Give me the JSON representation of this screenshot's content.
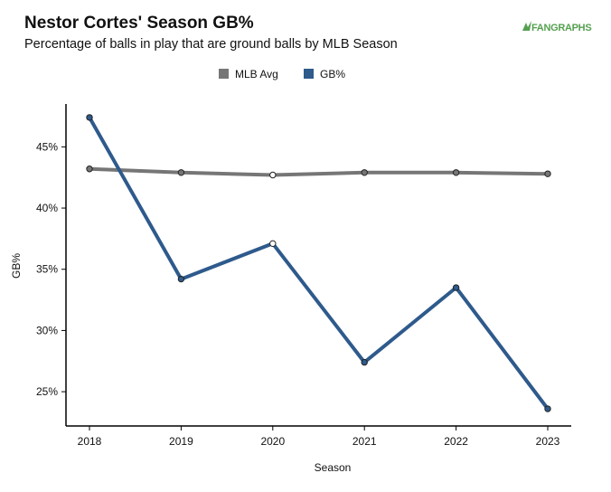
{
  "chart_data": {
    "type": "line",
    "title": "Nestor Cortes' Season GB%",
    "subtitle": "Percentage of balls in play that are ground balls by MLB Season",
    "xlabel": "Season",
    "ylabel": "GB%",
    "x": [
      "2018",
      "2019",
      "2020",
      "2021",
      "2022",
      "2023"
    ],
    "ylim": [
      22.2,
      48.5
    ],
    "yticks": [
      25,
      30,
      35,
      40,
      45
    ],
    "ytick_labels": [
      "25%",
      "30%",
      "35%",
      "40%",
      "45%"
    ],
    "legend_position": "top-center",
    "grid": false,
    "series": [
      {
        "name": "MLB Avg",
        "color": "#767676",
        "values": [
          43.2,
          42.9,
          42.7,
          42.9,
          42.9,
          42.8
        ]
      },
      {
        "name": "GB%",
        "color": "#2e5a8c",
        "values": [
          47.4,
          34.2,
          37.1,
          27.4,
          33.5,
          23.6
        ]
      }
    ],
    "hollow_points": [
      {
        "series": "MLB Avg",
        "x": "2020"
      },
      {
        "series": "GB%",
        "x": "2020"
      }
    ]
  },
  "brand": {
    "logo_text": "FANGRAPHS",
    "logo_color": "#55a050"
  }
}
